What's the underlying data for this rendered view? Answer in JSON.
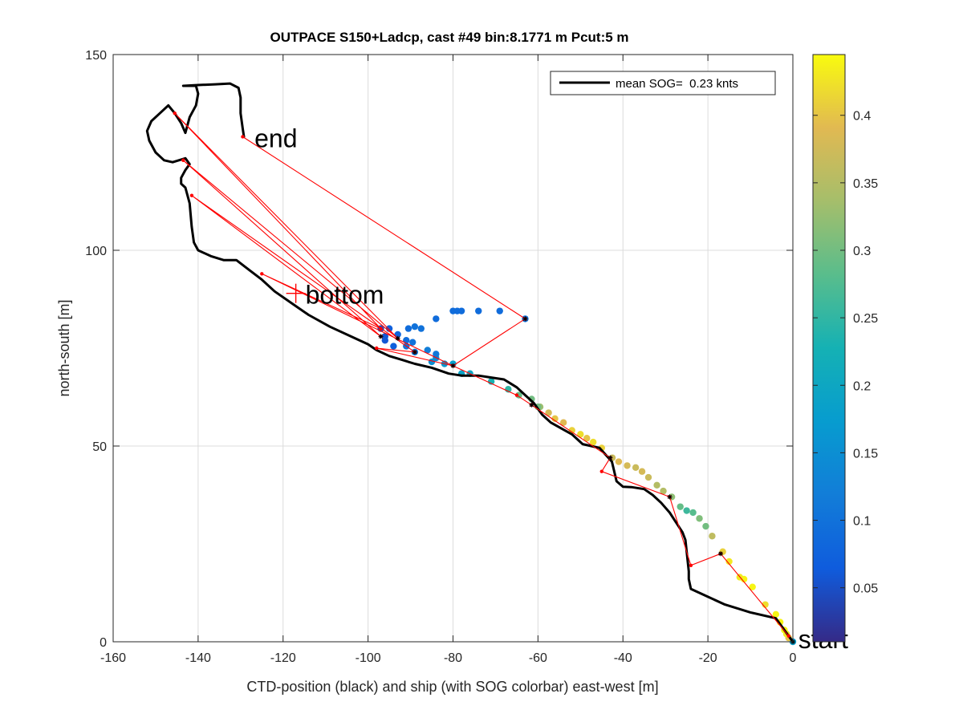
{
  "chart_data": {
    "type": "scatter",
    "title": "OUTPACE S150+Ladcp, cast #49 bin:8.1771 m  Pcut:5 m",
    "xlabel": "CTD-position (black) and ship (with SOG colorbar) east-west [m]",
    "ylabel": "north-south [m]",
    "xlim": [
      -160,
      0
    ],
    "ylim": [
      0,
      150
    ],
    "xticks": [
      -160,
      -140,
      -120,
      -100,
      -80,
      -60,
      -40,
      -20,
      0
    ],
    "yticks": [
      0,
      50,
      100,
      150
    ],
    "grid": true,
    "legend": {
      "position": "top-right",
      "entries": [
        "mean SOG=  0.23 knts"
      ]
    },
    "colorbar": {
      "range": [
        0.01,
        0.445
      ],
      "ticks": [
        0.05,
        0.1,
        0.15,
        0.2,
        0.25,
        0.3,
        0.35,
        0.4
      ],
      "tick_labels": [
        "0.05",
        "0.1",
        "0.15",
        "0.2",
        "0.25",
        "0.3",
        "0.35",
        "0.4"
      ],
      "colormap": "parula"
    },
    "annotations": [
      {
        "text": "end",
        "x": -129,
        "y": 129
      },
      {
        "text": "bottom",
        "x": -117,
        "y": 89
      },
      {
        "text": "start",
        "x": -1,
        "y": 1
      }
    ],
    "series": [
      {
        "kind": "line",
        "color": "#000000",
        "points": [
          [
            0,
            0
          ],
          [
            -2,
            3
          ],
          [
            -4,
            6
          ],
          [
            -10,
            7.5
          ],
          [
            -16,
            9.5
          ],
          [
            -20,
            11.5
          ],
          [
            -24,
            13.5
          ],
          [
            -24.5,
            16
          ],
          [
            -24.5,
            18
          ],
          [
            -25.3,
            26
          ],
          [
            -26,
            28
          ],
          [
            -27.5,
            30.5
          ],
          [
            -29,
            33
          ],
          [
            -31,
            35.5
          ],
          [
            -33,
            37.5
          ],
          [
            -35,
            39
          ],
          [
            -38,
            39.5
          ],
          [
            -40,
            39.6
          ],
          [
            -41.5,
            41
          ],
          [
            -42.6,
            46
          ],
          [
            -45.5,
            49.5
          ],
          [
            -49.5,
            50.5
          ],
          [
            -52,
            53
          ],
          [
            -57,
            56
          ],
          [
            -59,
            58
          ],
          [
            -61,
            61
          ],
          [
            -63,
            63
          ],
          [
            -65,
            65
          ],
          [
            -68,
            67
          ],
          [
            -71,
            67.5
          ],
          [
            -74,
            68
          ],
          [
            -78,
            68
          ],
          [
            -81,
            68.5
          ],
          [
            -85,
            70
          ],
          [
            -89,
            71
          ],
          [
            -92,
            72
          ],
          [
            -95,
            73
          ],
          [
            -98,
            74.5
          ],
          [
            -100,
            76
          ],
          [
            -104,
            78
          ],
          [
            -109,
            80.5
          ],
          [
            -114,
            83.5
          ],
          [
            -118,
            86.5
          ],
          [
            -122,
            89.5
          ],
          [
            -125,
            92.5
          ],
          [
            -128,
            95
          ],
          [
            -131,
            97.5
          ],
          [
            -134,
            97.5
          ],
          [
            -137,
            98.5
          ],
          [
            -140,
            100
          ],
          [
            -141,
            102
          ],
          [
            -141.5,
            106
          ],
          [
            -142,
            112
          ],
          [
            -143,
            116
          ],
          [
            -144,
            117
          ],
          [
            -144,
            118.5
          ],
          [
            -143,
            120.5
          ],
          [
            -142,
            122
          ],
          [
            -143,
            123.5
          ],
          [
            -146,
            122.5
          ],
          [
            -148,
            123
          ],
          [
            -150,
            125
          ],
          [
            -151.5,
            128
          ],
          [
            -152,
            130.5
          ],
          [
            -151,
            133
          ],
          [
            -149,
            135
          ],
          [
            -147,
            137
          ],
          [
            -145.5,
            135
          ],
          [
            -144,
            132.5
          ],
          [
            -143,
            130
          ],
          [
            -142,
            134
          ],
          [
            -140.5,
            137
          ],
          [
            -140,
            140
          ],
          [
            -140.5,
            142
          ],
          [
            -143.5,
            142
          ],
          [
            -140.5,
            142.2
          ],
          [
            -136,
            142.4
          ],
          [
            -132.5,
            142.6
          ],
          [
            -130.5,
            141.5
          ],
          [
            -130,
            139
          ],
          [
            -130,
            135
          ],
          [
            -129.5,
            131
          ],
          [
            -129.2,
            129
          ]
        ]
      },
      {
        "kind": "line",
        "color": "#ff0000",
        "points": [
          [
            -1,
            1.5
          ],
          [
            -17,
            22.5
          ],
          [
            -24,
            19.5
          ],
          [
            -29,
            37
          ],
          [
            -45,
            43.5
          ],
          [
            -43,
            47
          ],
          [
            -61.5,
            60.5
          ],
          [
            -65,
            63
          ],
          [
            -80,
            70.5
          ],
          [
            -98,
            75
          ],
          [
            -89,
            74
          ],
          [
            -141.5,
            114
          ],
          [
            -97,
            78
          ],
          [
            -143.5,
            123
          ],
          [
            -93,
            77.5
          ],
          [
            -145.5,
            135
          ],
          [
            -97,
            80
          ],
          [
            -125,
            94
          ],
          [
            -80,
            70.5
          ],
          [
            -63,
            82.5
          ],
          [
            -129.5,
            129
          ]
        ]
      },
      {
        "kind": "scatter",
        "name": "ship SOG",
        "points": [
          [
            0,
            0,
            0.18
          ],
          [
            -1,
            1,
            0.4
          ],
          [
            -1.5,
            2,
            0.43
          ],
          [
            -2,
            3,
            0.44
          ],
          [
            -3,
            5,
            0.44
          ],
          [
            -4,
            7,
            0.44
          ],
          [
            -6.5,
            9.5,
            0.42
          ],
          [
            -9.5,
            14,
            0.44
          ],
          [
            -11.5,
            16,
            0.44
          ],
          [
            -12.5,
            16.5,
            0.43
          ],
          [
            -15,
            20.5,
            0.43
          ],
          [
            -16.5,
            23,
            0.41
          ],
          [
            -19,
            27,
            0.36
          ],
          [
            -20.5,
            29.5,
            0.3
          ],
          [
            -22,
            31.5,
            0.31
          ],
          [
            -23.5,
            33,
            0.28
          ],
          [
            -25,
            33.5,
            0.26
          ],
          [
            -26.5,
            34.5,
            0.29
          ],
          [
            -28.5,
            37,
            0.32
          ],
          [
            -30.5,
            38.5,
            0.35
          ],
          [
            -32,
            40,
            0.35
          ],
          [
            -34,
            42,
            0.37
          ],
          [
            -35.5,
            43.5,
            0.38
          ],
          [
            -37,
            44.5,
            0.37
          ],
          [
            -39,
            45,
            0.38
          ],
          [
            -41,
            46,
            0.39
          ],
          [
            -42.5,
            47,
            0.37
          ],
          [
            -45,
            49.5,
            0.41
          ],
          [
            -47,
            51,
            0.42
          ],
          [
            -48.5,
            52,
            0.4
          ],
          [
            -50,
            53,
            0.42
          ],
          [
            -52,
            54,
            0.41
          ],
          [
            -54,
            56,
            0.39
          ],
          [
            -56,
            57,
            0.4
          ],
          [
            -57.5,
            58.5,
            0.38
          ],
          [
            -59.5,
            60,
            0.33
          ],
          [
            -60,
            60,
            0.3
          ],
          [
            -61.5,
            62,
            0.3
          ],
          [
            -64.5,
            63,
            0.29
          ],
          [
            -67,
            64.5,
            0.25
          ],
          [
            -71,
            66.5,
            0.23
          ],
          [
            -76,
            68.5,
            0.2
          ],
          [
            -78,
            68.5,
            0.19
          ],
          [
            -80,
            71,
            0.18
          ],
          [
            -82,
            71,
            0.17
          ],
          [
            -84,
            72.5,
            0.14
          ],
          [
            -85,
            71.5,
            0.15
          ],
          [
            -84,
            73.5,
            0.11
          ],
          [
            -86,
            74.5,
            0.12
          ],
          [
            -89,
            74,
            0.11
          ],
          [
            -89.5,
            76.5,
            0.1
          ],
          [
            -91,
            75.5,
            0.1
          ],
          [
            -94,
            75.5,
            0.07
          ],
          [
            -96,
            77,
            0.06
          ],
          [
            -97,
            80,
            0.05
          ],
          [
            -96,
            78,
            0.06
          ],
          [
            -95,
            80,
            0.07
          ],
          [
            -93,
            78.5,
            0.08
          ],
          [
            -91,
            77,
            0.09
          ],
          [
            -89,
            80.5,
            0.1
          ],
          [
            -90.5,
            80,
            0.09
          ],
          [
            -87.5,
            80,
            0.1
          ],
          [
            -84,
            82.5,
            0.09
          ],
          [
            -80,
            84.5,
            0.09
          ],
          [
            -78,
            84.5,
            0.09
          ],
          [
            -79,
            84.5,
            0.09
          ],
          [
            -74,
            84.5,
            0.09
          ],
          [
            -69,
            84.5,
            0.09
          ],
          [
            -63,
            82.5,
            0.1
          ]
        ]
      },
      {
        "kind": "markers",
        "name": "CTD markers",
        "points": [
          [
            0,
            0
          ],
          [
            -17,
            22.5
          ],
          [
            -29,
            37
          ],
          [
            -43,
            47
          ],
          [
            -61.5,
            60.5
          ],
          [
            -80,
            70.5
          ],
          [
            -89,
            74
          ],
          [
            -97,
            78
          ],
          [
            -93,
            77.5
          ],
          [
            -63,
            82.5
          ]
        ]
      }
    ]
  }
}
